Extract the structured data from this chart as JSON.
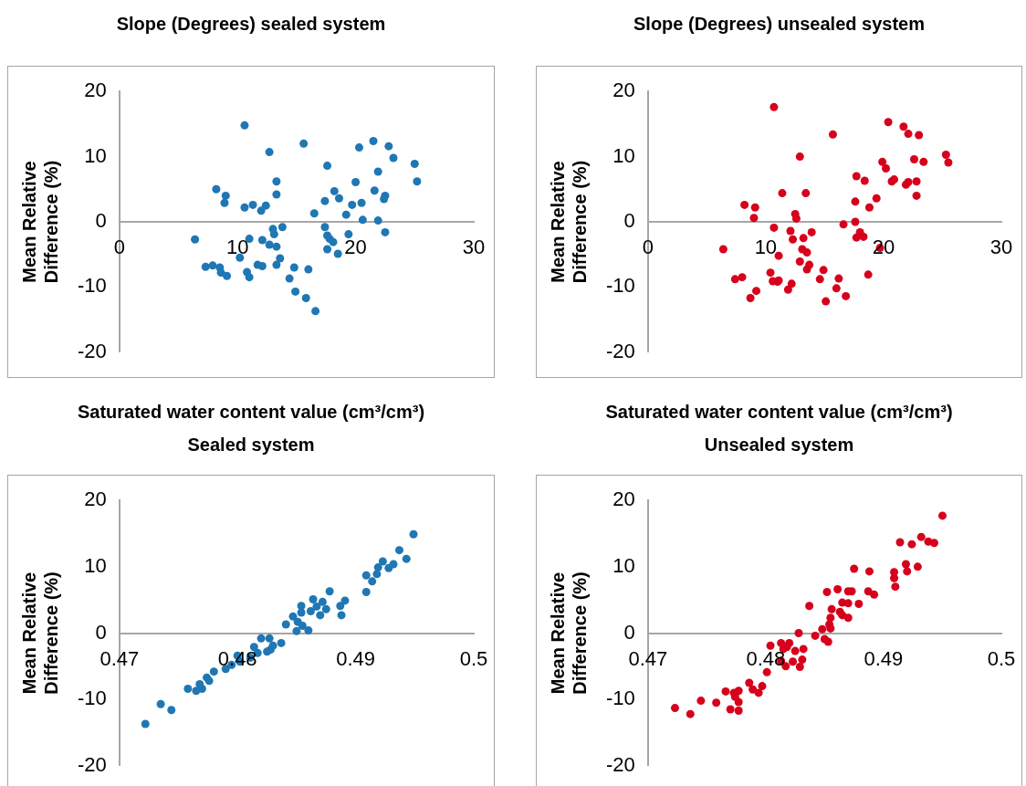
{
  "chart_data": [
    {
      "type": "scatter",
      "title": "Slope (Degrees) sealed system",
      "ylabel": "Mean Relative Difference (%)",
      "color": "#1f77b4",
      "marker": "circle",
      "xlim": [
        0,
        30
      ],
      "ylim": [
        -20,
        20
      ],
      "xticks": [
        0,
        10,
        20,
        30
      ],
      "yticks": [
        -20,
        -10,
        0,
        10,
        20
      ],
      "x": [
        10.6,
        15.6,
        21.5,
        20.3,
        22.8,
        23.2,
        12.7,
        17.6,
        25.0,
        25.2,
        21.9,
        13.3,
        20.0,
        8.2,
        9.0,
        13.3,
        18.2,
        18.6,
        21.6,
        22.5,
        22.4,
        8.9,
        10.6,
        11.3,
        12.4,
        12.0,
        17.4,
        19.7,
        20.5,
        16.5,
        19.2,
        20.6,
        21.9,
        17.4,
        13.0,
        13.8,
        13.1,
        22.5,
        19.4,
        17.6,
        17.8,
        18.1,
        6.4,
        11.0,
        12.1,
        12.7,
        13.3,
        17.6,
        18.5,
        10.2,
        13.6,
        7.3,
        7.9,
        8.5,
        8.6,
        9.1,
        11.7,
        12.1,
        13.3,
        14.8,
        16.0,
        10.8,
        11.0,
        14.4,
        14.9,
        15.8,
        16.6
      ],
      "values": [
        14.8,
        12.0,
        12.4,
        11.4,
        11.6,
        9.8,
        10.7,
        8.6,
        8.9,
        6.2,
        7.7,
        6.2,
        6.1,
        5.0,
        4.0,
        4.2,
        4.7,
        3.6,
        4.8,
        4.0,
        3.5,
        2.9,
        2.2,
        2.6,
        2.5,
        1.7,
        3.2,
        2.6,
        2.9,
        1.3,
        1.1,
        0.3,
        0.2,
        -0.8,
        -1.1,
        -0.8,
        -1.9,
        -1.6,
        -1.9,
        -2.1,
        -2.6,
        -3.1,
        -2.7,
        -2.6,
        -2.8,
        -3.5,
        -3.8,
        -4.2,
        -4.9,
        -5.5,
        -5.6,
        -6.9,
        -6.7,
        -7.0,
        -7.8,
        -8.3,
        -6.6,
        -6.8,
        -6.6,
        -7.0,
        -7.3,
        -7.7,
        -8.5,
        -8.7,
        -10.7,
        -11.7,
        -13.7
      ]
    },
    {
      "type": "scatter",
      "title": "Slope (Degrees) unsealed system",
      "ylabel": "Mean Relative Difference (%)",
      "color": "#d7001c",
      "marker": "circle",
      "xlim": [
        0,
        30
      ],
      "ylim": [
        -20,
        20
      ],
      "xticks": [
        0,
        10,
        20,
        30
      ],
      "yticks": [
        -20,
        -10,
        0,
        10,
        20
      ],
      "x": [
        10.7,
        20.4,
        21.7,
        22.1,
        23.0,
        15.7,
        12.9,
        25.3,
        25.5,
        19.9,
        20.2,
        22.6,
        23.4,
        17.7,
        18.4,
        20.7,
        20.9,
        21.9,
        22.1,
        22.8,
        22.8,
        11.4,
        13.4,
        19.4,
        17.6,
        18.8,
        8.2,
        9.1,
        9.0,
        12.5,
        12.6,
        16.6,
        17.6,
        10.7,
        12.1,
        13.9,
        12.3,
        13.2,
        18.0,
        17.7,
        18.3,
        6.4,
        13.1,
        13.5,
        19.7,
        12.9,
        13.7,
        13.5,
        14.9,
        11.1,
        10.4,
        7.4,
        8.0,
        10.6,
        11.0,
        11.1,
        12.2,
        14.6,
        16.2,
        18.7,
        11.9,
        16.0,
        16.8,
        9.2,
        8.7,
        15.1
      ],
      "values": [
        17.6,
        15.3,
        14.6,
        13.5,
        13.3,
        13.4,
        10.0,
        10.3,
        9.1,
        9.2,
        8.2,
        9.6,
        9.2,
        7.0,
        6.3,
        6.2,
        6.5,
        5.7,
        6.1,
        6.2,
        4.0,
        4.4,
        4.4,
        3.6,
        3.1,
        2.2,
        2.6,
        2.2,
        0.6,
        1.2,
        0.5,
        -0.4,
        0.0,
        -0.9,
        -1.4,
        -1.6,
        -2.7,
        -2.5,
        -1.6,
        -2.4,
        -2.3,
        -4.2,
        -4.2,
        -4.7,
        -4.0,
        -6.1,
        -6.6,
        -7.3,
        -7.4,
        -5.2,
        -7.8,
        -8.8,
        -8.5,
        -9.1,
        -9.2,
        -9.0,
        -9.5,
        -8.8,
        -8.7,
        -8.1,
        -10.4,
        -10.2,
        -11.4,
        -10.6,
        -11.7,
        -12.2
      ]
    },
    {
      "type": "scatter",
      "title": "Saturated water content value (cm³/cm³)",
      "subtitle": "Sealed system",
      "ylabel": "Mean Relative Difference (%)",
      "color": "#1f77b4",
      "marker": "circle",
      "xlim": [
        0.47,
        0.5
      ],
      "ylim": [
        -20,
        20
      ],
      "xticks": [
        0.47,
        0.48,
        0.49,
        0.5
      ],
      "yticks": [
        -20,
        -10,
        0,
        10,
        20
      ],
      "x": [
        0.4949,
        0.4937,
        0.4943,
        0.4923,
        0.4932,
        0.4928,
        0.4919,
        0.4918,
        0.4909,
        0.4914,
        0.4909,
        0.4878,
        0.4891,
        0.4887,
        0.4888,
        0.4864,
        0.4872,
        0.4867,
        0.4875,
        0.487,
        0.4862,
        0.4854,
        0.4854,
        0.4847,
        0.4851,
        0.4841,
        0.4855,
        0.485,
        0.486,
        0.482,
        0.4827,
        0.4837,
        0.483,
        0.4825,
        0.4814,
        0.4817,
        0.4828,
        0.4811,
        0.48,
        0.4802,
        0.4795,
        0.479,
        0.478,
        0.4774,
        0.4776,
        0.4768,
        0.477,
        0.4765,
        0.4758,
        0.4735,
        0.4744,
        0.4722
      ],
      "values": [
        14.9,
        12.5,
        11.2,
        10.8,
        10.4,
        9.8,
        9.9,
        8.9,
        8.7,
        7.8,
        6.2,
        6.3,
        4.9,
        4.1,
        2.7,
        5.1,
        4.7,
        4.0,
        3.6,
        2.7,
        3.3,
        4.1,
        3.1,
        2.5,
        1.7,
        1.3,
        1.1,
        0.3,
        0.4,
        -0.8,
        -0.8,
        -1.5,
        -1.9,
        -2.8,
        -2.1,
        -3.0,
        -2.5,
        -3.7,
        -3.4,
        -4.3,
        -4.8,
        -5.4,
        -5.8,
        -6.7,
        -7.2,
        -7.7,
        -8.4,
        -8.7,
        -8.4,
        -10.7,
        -11.6,
        -13.7
      ]
    },
    {
      "type": "scatter",
      "title": "Saturated water content value (cm³/cm³)",
      "subtitle": "Unsealed system",
      "ylabel": "Mean Relative Difference (%)",
      "color": "#d7001c",
      "marker": "circle",
      "xlim": [
        0.47,
        0.5
      ],
      "ylim": [
        -20,
        20
      ],
      "xticks": [
        0.47,
        0.48,
        0.49,
        0.5
      ],
      "yticks": [
        -20,
        -10,
        0,
        10,
        20
      ],
      "x": [
        0.495,
        0.4932,
        0.4938,
        0.4943,
        0.4914,
        0.4924,
        0.4875,
        0.4888,
        0.4919,
        0.4909,
        0.4909,
        0.492,
        0.4929,
        0.491,
        0.4852,
        0.4861,
        0.487,
        0.4873,
        0.4887,
        0.4892,
        0.4865,
        0.487,
        0.4879,
        0.4837,
        0.4856,
        0.4863,
        0.4865,
        0.487,
        0.4855,
        0.4854,
        0.4855,
        0.4848,
        0.4828,
        0.4842,
        0.485,
        0.4853,
        0.4804,
        0.4813,
        0.482,
        0.4818,
        0.4815,
        0.4825,
        0.4832,
        0.4813,
        0.4823,
        0.4831,
        0.4817,
        0.4829,
        0.4801,
        0.4786,
        0.4789,
        0.4797,
        0.4794,
        0.4777,
        0.4766,
        0.4773,
        0.4777,
        0.4774,
        0.4745,
        0.4758,
        0.477,
        0.4777,
        0.4723,
        0.4736
      ],
      "values": [
        17.7,
        14.5,
        13.8,
        13.6,
        13.7,
        13.4,
        9.7,
        9.3,
        10.4,
        9.2,
        8.3,
        9.3,
        10.0,
        7.0,
        6.2,
        6.6,
        6.3,
        6.3,
        6.3,
        5.8,
        4.6,
        4.5,
        4.4,
        4.1,
        3.6,
        3.2,
        2.7,
        2.3,
        2.3,
        1.3,
        0.7,
        0.6,
        0.0,
        -0.4,
        -0.9,
        -1.3,
        -1.9,
        -1.5,
        -1.5,
        -2.1,
        -2.4,
        -2.7,
        -2.4,
        -4.2,
        -4.3,
        -4.0,
        -5.0,
        -5.1,
        -5.9,
        -7.5,
        -8.5,
        -8.0,
        -9.0,
        -8.7,
        -8.8,
        -9.0,
        -10.4,
        -9.6,
        -10.2,
        -10.5,
        -11.5,
        -11.7,
        -11.3,
        -12.2
      ]
    }
  ]
}
